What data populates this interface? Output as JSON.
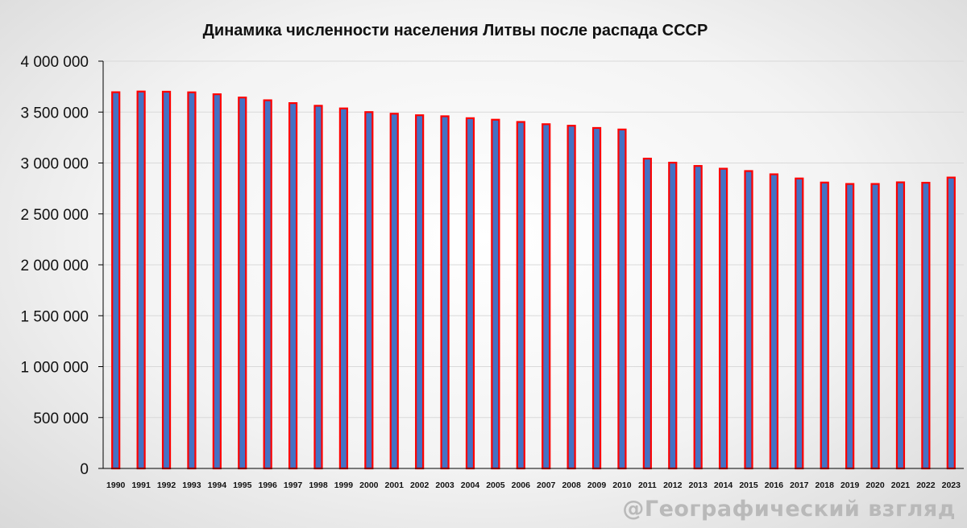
{
  "chart_data": {
    "type": "bar",
    "title": "Динамика численности населения Литвы после распада СССР",
    "xlabel": "",
    "ylabel": "",
    "ylim": [
      0,
      4000000
    ],
    "y_ticks": [
      0,
      500000,
      1000000,
      1500000,
      2000000,
      2500000,
      3000000,
      3500000,
      4000000
    ],
    "y_tick_labels": [
      "0",
      "500 000",
      "1 000 000",
      "1 500 000",
      "2 000 000",
      "2 500 000",
      "3 000 000",
      "3 500 000",
      "4 000 000"
    ],
    "grid": true,
    "legend": "none",
    "categories": [
      "1990",
      "1991",
      "1992",
      "1993",
      "1994",
      "1995",
      "1996",
      "1997",
      "1998",
      "1999",
      "2000",
      "2001",
      "2002",
      "2003",
      "2004",
      "2005",
      "2006",
      "2007",
      "2008",
      "2009",
      "2010",
      "2011",
      "2012",
      "2013",
      "2014",
      "2015",
      "2016",
      "2017",
      "2018",
      "2019",
      "2020",
      "2021",
      "2022",
      "2023"
    ],
    "values": [
      3695000,
      3702000,
      3700000,
      3694000,
      3675000,
      3643000,
      3616000,
      3588000,
      3562000,
      3536000,
      3500000,
      3484000,
      3469000,
      3459000,
      3440000,
      3425000,
      3403000,
      3381000,
      3366000,
      3344000,
      3329000,
      3043000,
      3003000,
      2971000,
      2944000,
      2921000,
      2889000,
      2848000,
      2808000,
      2794000,
      2794000,
      2810000,
      2806000,
      2857000
    ],
    "colors": {
      "bar_fill": "#4472c4",
      "bar_stroke": "#ff0000",
      "grid": "#d9d9d9",
      "axis": "#000000"
    }
  },
  "watermark": "@Географический взгляд"
}
